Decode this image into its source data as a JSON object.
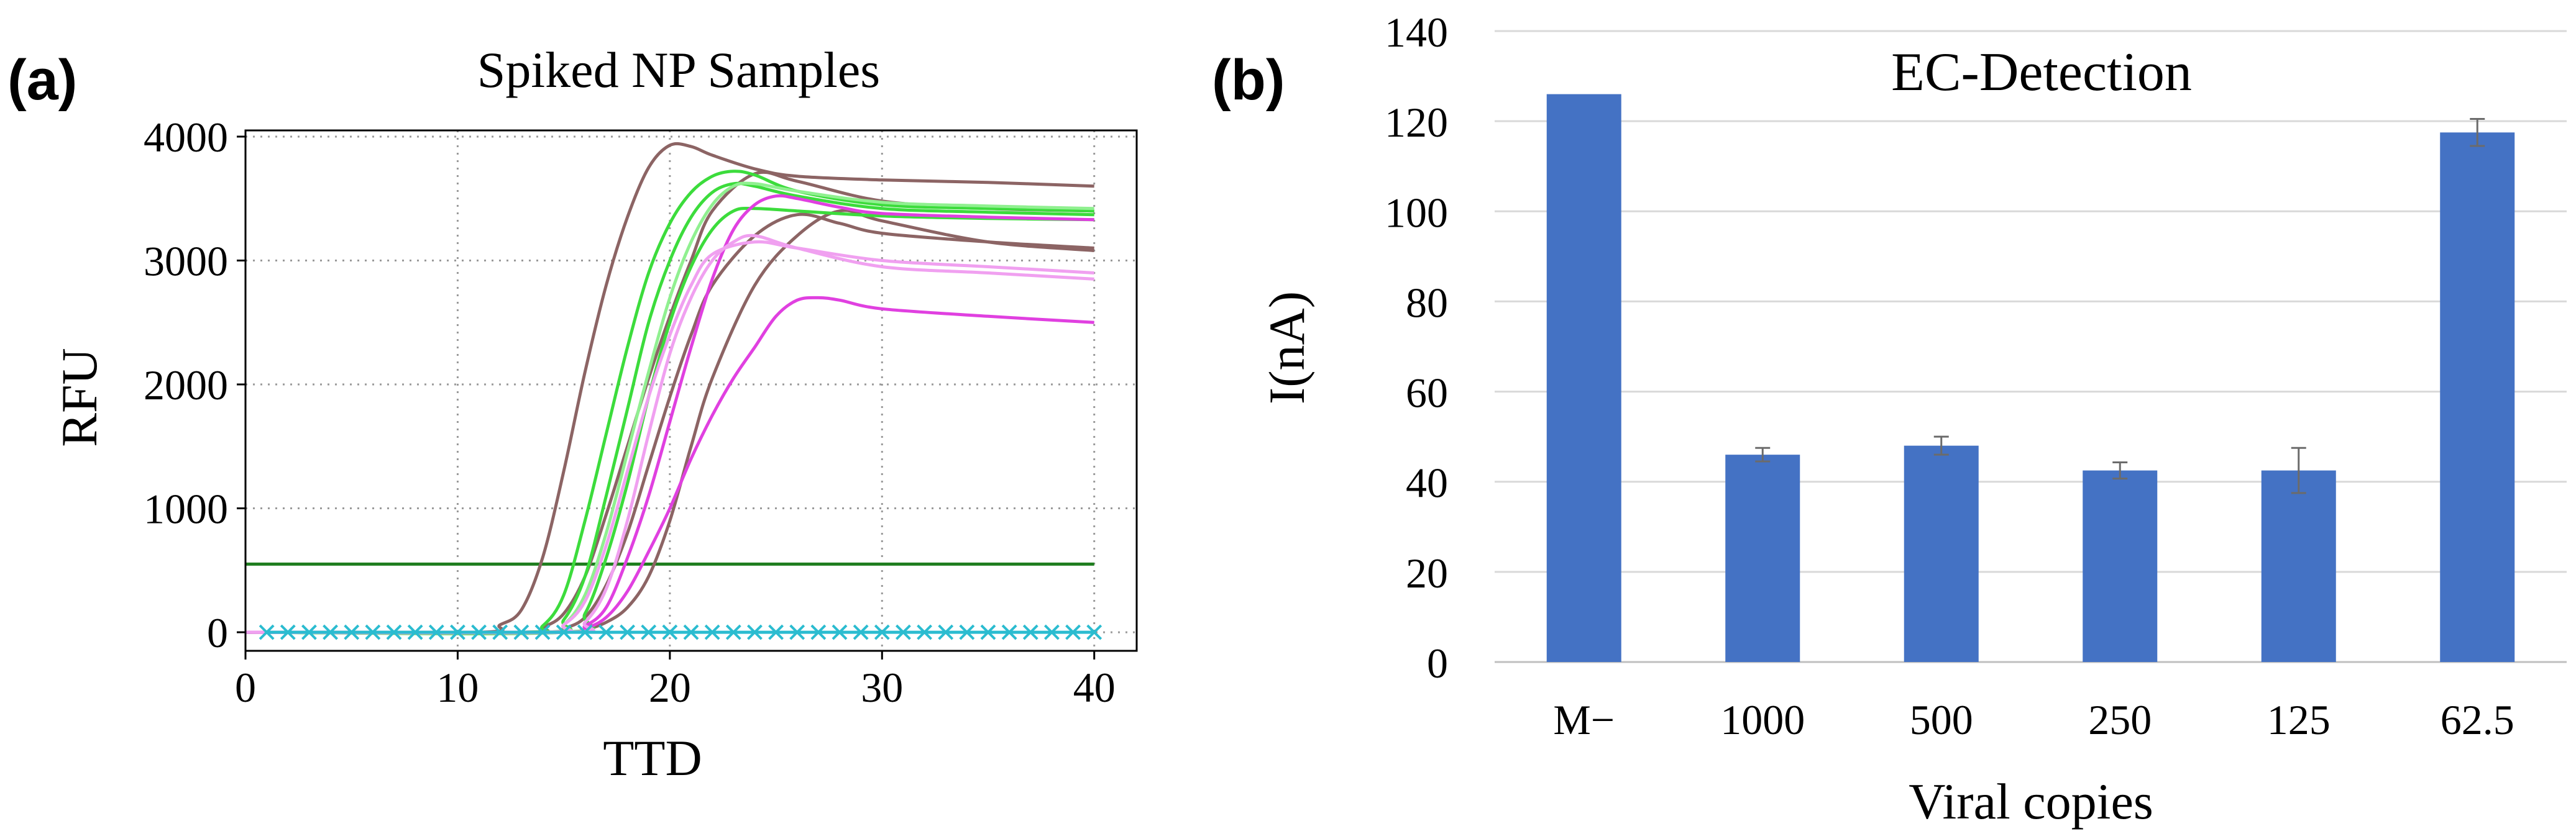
{
  "panels": {
    "a": {
      "letter": "(a)"
    },
    "b": {
      "letter": "(b)"
    }
  },
  "chart_data": [
    {
      "type": "line",
      "title": "Spiked NP Samples",
      "xlabel": "TTD",
      "ylabel": "RFU",
      "xlim": [
        0,
        42
      ],
      "ylim": [
        -150,
        4050
      ],
      "xticks": [
        0,
        10,
        20,
        30,
        40
      ],
      "yticks": [
        0,
        1000,
        2000,
        3000,
        4000
      ],
      "grid": true,
      "threshold": {
        "value": 550,
        "color": "#1e7d1e"
      },
      "negative_markers": {
        "y": 0,
        "x_start": 1,
        "x_end": 40,
        "step": 1,
        "color": "#2bbcd0"
      },
      "series": [
        {
          "name": "brown-1",
          "color": "#8c6464",
          "x": [
            0,
            11,
            12,
            13,
            14,
            15,
            16,
            17,
            18,
            19,
            20,
            21,
            22,
            24,
            26,
            30,
            35,
            40
          ],
          "y": [
            0,
            0,
            60,
            180,
            600,
            1300,
            2100,
            2800,
            3350,
            3750,
            3930,
            3920,
            3850,
            3740,
            3680,
            3650,
            3630,
            3600
          ]
        },
        {
          "name": "brown-2",
          "color": "#8c6464",
          "x": [
            0,
            13,
            14,
            15,
            16,
            17,
            18,
            19,
            20,
            21,
            22,
            24,
            26,
            30,
            35,
            40
          ],
          "y": [
            0,
            0,
            40,
            150,
            450,
            950,
            1500,
            2050,
            2550,
            3000,
            3400,
            3700,
            3640,
            3480,
            3420,
            3400
          ]
        },
        {
          "name": "brown-3",
          "color": "#8c6464",
          "x": [
            0,
            14,
            15,
            16,
            17,
            18,
            19,
            20,
            21,
            22,
            24,
            26,
            28,
            30,
            35,
            40
          ],
          "y": [
            0,
            0,
            30,
            120,
            380,
            800,
            1350,
            1900,
            2400,
            2800,
            3200,
            3370,
            3300,
            3220,
            3150,
            3100
          ]
        },
        {
          "name": "brown-4",
          "color": "#8c6464",
          "x": [
            0,
            15,
            16,
            17,
            18,
            19,
            20,
            21,
            22,
            24,
            26,
            28,
            30,
            35,
            40
          ],
          "y": [
            0,
            0,
            20,
            80,
            200,
            450,
            900,
            1500,
            2050,
            2800,
            3200,
            3400,
            3320,
            3150,
            3080
          ]
        },
        {
          "name": "green-1",
          "color": "#3cdc3c",
          "x": [
            0,
            13,
            14,
            15,
            16,
            17,
            18,
            19,
            20,
            21,
            22,
            23,
            24,
            26,
            30,
            35,
            40
          ],
          "y": [
            0,
            0,
            50,
            300,
            900,
            1600,
            2300,
            2900,
            3300,
            3550,
            3680,
            3720,
            3690,
            3560,
            3450,
            3420,
            3400
          ]
        },
        {
          "name": "green-2",
          "color": "#3cdc3c",
          "x": [
            0,
            14,
            15,
            16,
            17,
            18,
            19,
            20,
            21,
            22,
            23,
            24,
            26,
            30,
            35,
            40
          ],
          "y": [
            0,
            0,
            100,
            450,
            1100,
            1800,
            2500,
            3000,
            3350,
            3550,
            3620,
            3600,
            3520,
            3420,
            3390,
            3370
          ]
        },
        {
          "name": "green-3",
          "color": "#3cdc3c",
          "x": [
            0,
            15,
            16,
            17,
            18,
            19,
            20,
            21,
            22,
            23,
            24,
            26,
            30,
            35,
            40
          ],
          "y": [
            0,
            0,
            150,
            600,
            1200,
            1900,
            2500,
            2950,
            3250,
            3400,
            3420,
            3400,
            3360,
            3340,
            3330
          ]
        },
        {
          "name": "light-green-1",
          "color": "#90f090",
          "x": [
            0,
            14,
            15,
            16,
            17,
            18,
            19,
            20,
            21,
            22,
            23,
            24,
            26,
            30,
            35,
            40
          ],
          "y": [
            0,
            0,
            60,
            300,
            800,
            1450,
            2100,
            2700,
            3150,
            3450,
            3600,
            3620,
            3560,
            3470,
            3440,
            3420
          ]
        },
        {
          "name": "magenta-1",
          "color": "#e040e0",
          "x": [
            0,
            15,
            16,
            17,
            18,
            19,
            20,
            21,
            22,
            23,
            24,
            25,
            26,
            28,
            30,
            35,
            40
          ],
          "y": [
            0,
            0,
            50,
            200,
            600,
            1100,
            1700,
            2300,
            2850,
            3250,
            3450,
            3520,
            3500,
            3430,
            3380,
            3350,
            3330
          ]
        },
        {
          "name": "magenta-2",
          "color": "#e040e0",
          "x": [
            0,
            15,
            16,
            17,
            18,
            19,
            20,
            21,
            22,
            23,
            24,
            25,
            26,
            27,
            28,
            30,
            35,
            40
          ],
          "y": [
            0,
            0,
            30,
            120,
            330,
            650,
            1000,
            1400,
            1750,
            2050,
            2300,
            2550,
            2680,
            2700,
            2680,
            2610,
            2550,
            2500
          ]
        },
        {
          "name": "pink-1",
          "color": "#f0a0f0",
          "x": [
            0,
            15,
            16,
            17,
            18,
            19,
            20,
            21,
            22,
            23,
            24,
            26,
            30,
            35,
            40
          ],
          "y": [
            0,
            0,
            80,
            350,
            900,
            1600,
            2250,
            2700,
            3000,
            3150,
            3200,
            3100,
            2950,
            2900,
            2850
          ]
        },
        {
          "name": "pink-2",
          "color": "#f0a0f0",
          "x": [
            0,
            14,
            15,
            16,
            17,
            18,
            19,
            20,
            21,
            22,
            24,
            26,
            30,
            35,
            40
          ],
          "y": [
            0,
            0,
            60,
            250,
            700,
            1300,
            1900,
            2400,
            2800,
            3050,
            3150,
            3100,
            3000,
            2950,
            2900
          ]
        }
      ]
    },
    {
      "type": "bar",
      "title": "EC-Detection",
      "xlabel": "Viral copies",
      "ylabel": "I(nA)",
      "categories": [
        "M−",
        "1000",
        "500",
        "250",
        "125",
        "62.5"
      ],
      "values": [
        126,
        46,
        48,
        42.5,
        42.5,
        117.5
      ],
      "errors": [
        0,
        1.5,
        2,
        1.8,
        5,
        3
      ],
      "ylim": [
        0,
        140
      ],
      "yticks": [
        0,
        20,
        40,
        60,
        80,
        100,
        120,
        140
      ],
      "grid": true,
      "color": "#4472c4"
    }
  ]
}
